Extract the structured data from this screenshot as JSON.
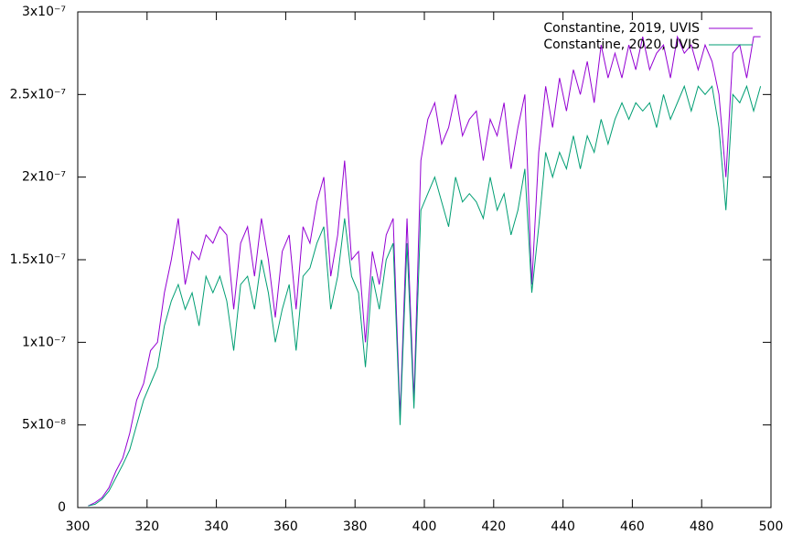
{
  "chart_data": {
    "type": "line",
    "x": [
      303,
      305,
      307,
      309,
      311,
      313,
      315,
      317,
      319,
      321,
      323,
      325,
      327,
      329,
      331,
      333,
      335,
      337,
      339,
      341,
      343,
      345,
      347,
      349,
      351,
      353,
      355,
      357,
      359,
      361,
      363,
      365,
      367,
      369,
      371,
      373,
      375,
      377,
      379,
      381,
      383,
      385,
      387,
      389,
      391,
      393,
      395,
      397,
      399,
      401,
      403,
      405,
      407,
      409,
      411,
      413,
      415,
      417,
      419,
      421,
      423,
      425,
      427,
      429,
      431,
      433,
      435,
      437,
      439,
      441,
      443,
      445,
      447,
      449,
      451,
      453,
      455,
      457,
      459,
      461,
      463,
      465,
      467,
      469,
      471,
      473,
      475,
      477,
      479,
      481,
      483,
      485,
      487,
      489,
      491,
      493,
      495,
      497
    ],
    "series": [
      {
        "name": "Constantine, 2019, UVIS",
        "color": "#9400d3",
        "values": [
          1e-09,
          3e-09,
          6e-09,
          1.2e-08,
          2.2e-08,
          3e-08,
          4.5e-08,
          6.5e-08,
          7.5e-08,
          9.5e-08,
          1e-07,
          1.3e-07,
          1.5e-07,
          1.75e-07,
          1.35e-07,
          1.55e-07,
          1.5e-07,
          1.65e-07,
          1.6e-07,
          1.7e-07,
          1.65e-07,
          1.2e-07,
          1.6e-07,
          1.7e-07,
          1.4e-07,
          1.75e-07,
          1.5e-07,
          1.15e-07,
          1.55e-07,
          1.65e-07,
          1.2e-07,
          1.7e-07,
          1.6e-07,
          1.85e-07,
          2e-07,
          1.4e-07,
          1.65e-07,
          2.1e-07,
          1.5e-07,
          1.55e-07,
          1e-07,
          1.55e-07,
          1.35e-07,
          1.65e-07,
          1.75e-07,
          5.5e-08,
          1.75e-07,
          6.5e-08,
          2.1e-07,
          2.35e-07,
          2.45e-07,
          2.2e-07,
          2.3e-07,
          2.5e-07,
          2.25e-07,
          2.35e-07,
          2.4e-07,
          2.1e-07,
          2.35e-07,
          2.25e-07,
          2.45e-07,
          2.05e-07,
          2.3e-07,
          2.5e-07,
          1.35e-07,
          2.15e-07,
          2.55e-07,
          2.3e-07,
          2.6e-07,
          2.4e-07,
          2.65e-07,
          2.5e-07,
          2.7e-07,
          2.45e-07,
          2.8e-07,
          2.6e-07,
          2.75e-07,
          2.6e-07,
          2.8e-07,
          2.65e-07,
          2.85e-07,
          2.65e-07,
          2.75e-07,
          2.8e-07,
          2.6e-07,
          2.85e-07,
          2.75e-07,
          2.8e-07,
          2.65e-07,
          2.8e-07,
          2.7e-07,
          2.5e-07,
          2e-07,
          2.75e-07,
          2.8e-07,
          2.6e-07,
          2.85e-07,
          2.85e-07
        ]
      },
      {
        "name": "Constantine, 2020, UVIS",
        "color": "#009e73",
        "values": [
          1e-09,
          2e-09,
          5e-09,
          1e-08,
          1.8e-08,
          2.6e-08,
          3.5e-08,
          5e-08,
          6.5e-08,
          7.5e-08,
          8.5e-08,
          1.1e-07,
          1.25e-07,
          1.35e-07,
          1.2e-07,
          1.3e-07,
          1.1e-07,
          1.4e-07,
          1.3e-07,
          1.4e-07,
          1.25e-07,
          9.5e-08,
          1.35e-07,
          1.4e-07,
          1.2e-07,
          1.5e-07,
          1.3e-07,
          1e-07,
          1.2e-07,
          1.35e-07,
          9.5e-08,
          1.4e-07,
          1.45e-07,
          1.6e-07,
          1.7e-07,
          1.2e-07,
          1.4e-07,
          1.75e-07,
          1.4e-07,
          1.3e-07,
          8.5e-08,
          1.4e-07,
          1.2e-07,
          1.5e-07,
          1.6e-07,
          5e-08,
          1.6e-07,
          6e-08,
          1.8e-07,
          1.9e-07,
          2e-07,
          1.85e-07,
          1.7e-07,
          2e-07,
          1.85e-07,
          1.9e-07,
          1.85e-07,
          1.75e-07,
          2e-07,
          1.8e-07,
          1.9e-07,
          1.65e-07,
          1.8e-07,
          2.05e-07,
          1.3e-07,
          1.7e-07,
          2.15e-07,
          2e-07,
          2.15e-07,
          2.05e-07,
          2.25e-07,
          2.05e-07,
          2.25e-07,
          2.15e-07,
          2.35e-07,
          2.2e-07,
          2.35e-07,
          2.45e-07,
          2.35e-07,
          2.45e-07,
          2.4e-07,
          2.45e-07,
          2.3e-07,
          2.5e-07,
          2.35e-07,
          2.45e-07,
          2.55e-07,
          2.4e-07,
          2.55e-07,
          2.5e-07,
          2.55e-07,
          2.3e-07,
          1.8e-07,
          2.5e-07,
          2.45e-07,
          2.55e-07,
          2.4e-07,
          2.55e-07
        ]
      }
    ],
    "xlim": [
      300,
      500
    ],
    "xticks": [
      300,
      320,
      340,
      360,
      380,
      400,
      420,
      440,
      460,
      480,
      500
    ],
    "ylim": [
      0,
      3e-07
    ],
    "yticks": [
      0,
      {
        "value": 5e-08,
        "label": "5x10⁻⁸"
      },
      {
        "value": 1e-07,
        "label": "1x10⁻⁷"
      },
      {
        "value": 1.5e-07,
        "label": "1.5x10⁻⁷"
      },
      {
        "value": 2e-07,
        "label": "2x10⁻⁷"
      },
      {
        "value": 2.5e-07,
        "label": "2.5x10⁻⁷"
      },
      {
        "value": 3e-07,
        "label": "3x10⁻⁷"
      }
    ],
    "legend": "top-right",
    "grid": false
  }
}
